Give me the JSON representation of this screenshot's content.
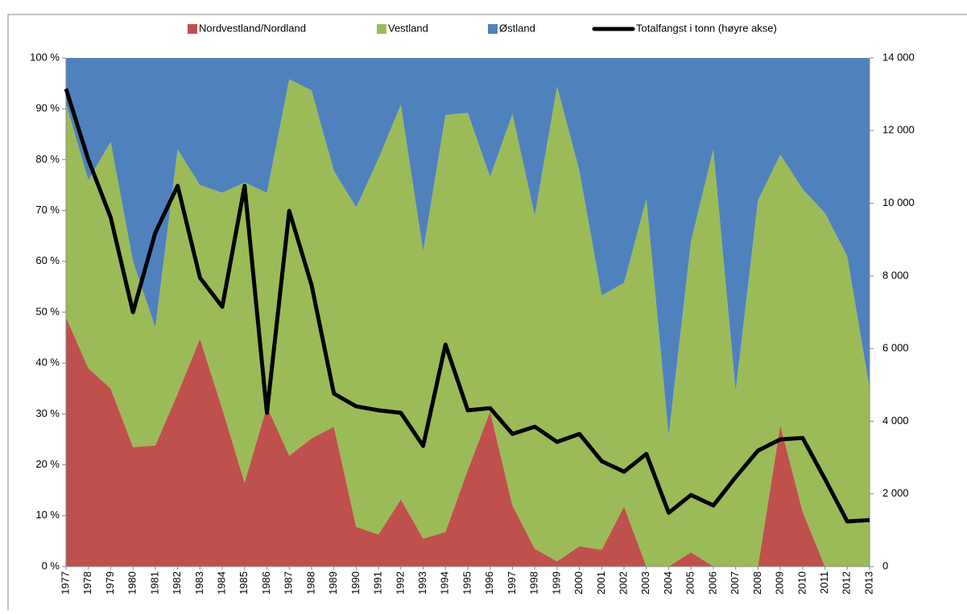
{
  "chart_data": {
    "type": "stacked-area-line",
    "categories": [
      "1977",
      "1978",
      "1979",
      "1980",
      "1981",
      "1982",
      "1983",
      "1984",
      "1985",
      "1986",
      "1987",
      "1988",
      "1989",
      "1990",
      "1991",
      "1992",
      "1993",
      "1994",
      "1995",
      "1996",
      "1997",
      "1998",
      "1999",
      "2000",
      "2001",
      "2002",
      "2003",
      "2004",
      "2005",
      "2006",
      "2007",
      "2008",
      "2009",
      "2010",
      "2011",
      "2012",
      "2013"
    ],
    "series": [
      {
        "name": "Nordvestland/Nordland",
        "color": "#c0504d",
        "values": [
          49,
          39,
          35,
          23.5,
          23.8,
          34,
          44.8,
          31,
          16.5,
          31.5,
          21.8,
          25.2,
          27.5,
          7.8,
          6.3,
          13.2,
          5.5,
          6.8,
          19,
          30.5,
          12,
          3.5,
          1,
          4,
          3.3,
          11.8,
          0,
          0,
          2.8,
          0,
          0,
          0,
          27.8,
          10.8,
          0,
          0,
          0
        ]
      },
      {
        "name": "Vestland",
        "color": "#9bbb59",
        "values": [
          42,
          37,
          48.5,
          36.5,
          23.2,
          48,
          30.2,
          42.5,
          59,
          42,
          74,
          68.4,
          50.3,
          62.8,
          73.9,
          77.6,
          56.5,
          82,
          70.2,
          46.1,
          77,
          65.5,
          93.4,
          73.8,
          50,
          44,
          72.3,
          25.7,
          61.2,
          82,
          34.5,
          72,
          53.2,
          63.4,
          69.5,
          61,
          35
        ]
      },
      {
        "name": "Østland",
        "color": "#4f81bd",
        "values": [
          9,
          24,
          16.5,
          40,
          53,
          18,
          25,
          26.5,
          24.5,
          26.5,
          4.2,
          6.4,
          22.2,
          29.4,
          19.8,
          9.2,
          38,
          11.2,
          10.8,
          23.4,
          11,
          31,
          5.6,
          22.2,
          46.7,
          44.2,
          27.7,
          74.3,
          36,
          18,
          65.5,
          28,
          19,
          25.8,
          30.5,
          39,
          65
        ]
      },
      {
        "name": "Totalfangst  i tonn (høyre akse)",
        "color": "#000000",
        "axis": "y2",
        "values": [
          13150,
          11200,
          9610,
          7000,
          9190,
          10480,
          7950,
          7150,
          10480,
          4230,
          9790,
          7750,
          4760,
          4410,
          4300,
          4230,
          3320,
          6110,
          4300,
          4360,
          3650,
          3850,
          3430,
          3650,
          2900,
          2610,
          3100,
          1480,
          1970,
          1680,
          2460,
          3190,
          3500,
          3540,
          2410,
          1240,
          1280
        ]
      }
    ],
    "ylim": [
      0,
      100
    ],
    "yticks": [
      {
        "value": 0,
        "label": "0 %"
      },
      {
        "value": 10,
        "label": "10 %"
      },
      {
        "value": 20,
        "label": "20 %"
      },
      {
        "value": 30,
        "label": "30 %"
      },
      {
        "value": 40,
        "label": "40 %"
      },
      {
        "value": 50,
        "label": "50 %"
      },
      {
        "value": 60,
        "label": "60 %"
      },
      {
        "value": 70,
        "label": "70 %"
      },
      {
        "value": 80,
        "label": "80 %"
      },
      {
        "value": 90,
        "label": "90 %"
      },
      {
        "value": 100,
        "label": "100 %"
      }
    ],
    "y2lim": [
      0,
      14000
    ],
    "y2ticks": [
      0,
      {
        "value": 2000,
        "label": "2 000"
      },
      {
        "value": 4000,
        "label": "4 000"
      },
      {
        "value": 6000,
        "label": "6 000"
      },
      {
        "value": 8000,
        "label": "8 000"
      },
      {
        "value": 10000,
        "label": "10 000"
      },
      {
        "value": 12000,
        "label": "12 000"
      },
      {
        "value": 14000,
        "label": "14 000"
      }
    ],
    "legend": "top"
  }
}
